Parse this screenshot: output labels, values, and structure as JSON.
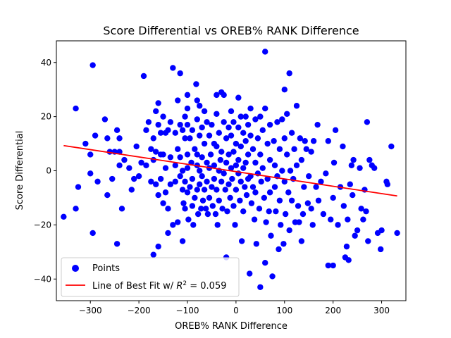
{
  "chart_data": {
    "type": "scatter",
    "title": "Score Differential vs OREB% RANK Difference",
    "xlabel": "OREB% RANK Difference",
    "ylabel": "Score Differential",
    "xlim": [
      -370,
      350
    ],
    "ylim": [
      -48,
      48
    ],
    "xticks": [
      -300,
      -200,
      -100,
      0,
      100,
      200,
      300
    ],
    "yticks": [
      -40,
      -20,
      0,
      20,
      40
    ],
    "xtick_labels": [
      "−300",
      "−200",
      "−100",
      "0",
      "100",
      "200",
      "300"
    ],
    "ytick_labels": [
      "−40",
      "−20",
      "0",
      "20",
      "40"
    ],
    "grid": false,
    "legend_position": "lower-left",
    "series": [
      {
        "name": "Points",
        "color": "#0000ff",
        "marker": "circle",
        "points": [
          [
            -355,
            -17
          ],
          [
            -330,
            23
          ],
          [
            -330,
            -14
          ],
          [
            -325,
            -6
          ],
          [
            -310,
            10
          ],
          [
            -300,
            6
          ],
          [
            -300,
            -1
          ],
          [
            -295,
            39
          ],
          [
            -295,
            -23
          ],
          [
            -290,
            13
          ],
          [
            -285,
            -4
          ],
          [
            -270,
            19
          ],
          [
            -265,
            12
          ],
          [
            -265,
            -9
          ],
          [
            -260,
            7
          ],
          [
            -255,
            -3
          ],
          [
            -250,
            7
          ],
          [
            -245,
            15
          ],
          [
            -245,
            -27
          ],
          [
            -240,
            12
          ],
          [
            -240,
            7
          ],
          [
            -240,
            2
          ],
          [
            -235,
            -14
          ],
          [
            -230,
            4
          ],
          [
            -220,
            1
          ],
          [
            -215,
            -7
          ],
          [
            -210,
            -3
          ],
          [
            -205,
            9
          ],
          [
            -200,
            -2
          ],
          [
            -195,
            3
          ],
          [
            -190,
            35
          ],
          [
            -185,
            15
          ],
          [
            -185,
            2
          ],
          [
            -180,
            18
          ],
          [
            -175,
            8
          ],
          [
            -175,
            -4
          ],
          [
            -170,
            12
          ],
          [
            -170,
            4
          ],
          [
            -170,
            -31
          ],
          [
            -165,
            22
          ],
          [
            -165,
            7
          ],
          [
            -165,
            -5
          ],
          [
            -160,
            25
          ],
          [
            -160,
            17
          ],
          [
            -160,
            -9
          ],
          [
            -160,
            -28
          ],
          [
            -155,
            14
          ],
          [
            -155,
            6
          ],
          [
            -155,
            -3
          ],
          [
            -150,
            20
          ],
          [
            -150,
            6
          ],
          [
            -150,
            -12
          ],
          [
            -145,
            14
          ],
          [
            -145,
            1
          ],
          [
            -145,
            -8
          ],
          [
            -140,
            15
          ],
          [
            -140,
            -14
          ],
          [
            -140,
            -23
          ],
          [
            -135,
            18
          ],
          [
            -135,
            5
          ],
          [
            -135,
            -5
          ],
          [
            -130,
            38
          ],
          [
            -130,
            -20
          ],
          [
            -125,
            14
          ],
          [
            -125,
            2
          ],
          [
            -125,
            -4
          ],
          [
            -120,
            26
          ],
          [
            -120,
            8
          ],
          [
            -120,
            -19
          ],
          [
            -115,
            36
          ],
          [
            -115,
            17
          ],
          [
            -115,
            5
          ],
          [
            -115,
            -2
          ],
          [
            -110,
            15
          ],
          [
            -110,
            0
          ],
          [
            -110,
            -7
          ],
          [
            -110,
            -26
          ],
          [
            -108,
            -12
          ],
          [
            -105,
            20
          ],
          [
            -105,
            12
          ],
          [
            -105,
            -4
          ],
          [
            -105,
            -14
          ],
          [
            -100,
            28
          ],
          [
            -100,
            23
          ],
          [
            -100,
            17
          ],
          [
            -100,
            6
          ],
          [
            -100,
            1
          ],
          [
            -100,
            -8
          ],
          [
            -98,
            -18
          ],
          [
            -95,
            12
          ],
          [
            -95,
            -6
          ],
          [
            -92,
            3
          ],
          [
            -90,
            15
          ],
          [
            -90,
            -3
          ],
          [
            -90,
            -13
          ],
          [
            -88,
            -20
          ],
          [
            -85,
            8
          ],
          [
            -85,
            -10
          ],
          [
            -82,
            32
          ],
          [
            -80,
            26
          ],
          [
            -80,
            19
          ],
          [
            -80,
            6
          ],
          [
            -80,
            2
          ],
          [
            -80,
            -7
          ],
          [
            -78,
            -16
          ],
          [
            -75,
            24
          ],
          [
            -75,
            13
          ],
          [
            -75,
            0
          ],
          [
            -75,
            -5
          ],
          [
            -72,
            -14
          ],
          [
            -70,
            16
          ],
          [
            -70,
            5
          ],
          [
            -70,
            -2
          ],
          [
            -68,
            -11
          ],
          [
            -65,
            22
          ],
          [
            -65,
            10
          ],
          [
            -65,
            -7
          ],
          [
            -62,
            -14
          ],
          [
            -60,
            18
          ],
          [
            -60,
            3
          ],
          [
            -60,
            -4
          ],
          [
            -58,
            -16
          ],
          [
            -55,
            13
          ],
          [
            -55,
            1
          ],
          [
            -55,
            -10
          ],
          [
            -52,
            6
          ],
          [
            -50,
            17
          ],
          [
            -50,
            -6
          ],
          [
            -48,
            -13
          ],
          [
            -45,
            10
          ],
          [
            -45,
            2
          ],
          [
            -45,
            -3
          ],
          [
            -42,
            -16
          ],
          [
            -40,
            28
          ],
          [
            -40,
            21
          ],
          [
            -40,
            9
          ],
          [
            -40,
            -7
          ],
          [
            -38,
            -20
          ],
          [
            -35,
            14
          ],
          [
            -35,
            0
          ],
          [
            -35,
            -11
          ],
          [
            -32,
            4
          ],
          [
            -30,
            29
          ],
          [
            -30,
            7
          ],
          [
            -30,
            -4
          ],
          [
            -28,
            -14
          ],
          [
            -25,
            28
          ],
          [
            -25,
            18
          ],
          [
            -25,
            -1
          ],
          [
            -22,
            -7
          ],
          [
            -20,
            12
          ],
          [
            -20,
            3
          ],
          [
            -20,
            -32
          ],
          [
            -18,
            -15
          ],
          [
            -15,
            16
          ],
          [
            -15,
            6
          ],
          [
            -15,
            -5
          ],
          [
            -12,
            -10
          ],
          [
            -10,
            22
          ],
          [
            -10,
            13
          ],
          [
            -10,
            1
          ],
          [
            -8,
            -3
          ],
          [
            -5,
            18
          ],
          [
            -5,
            7
          ],
          [
            -5,
            -13
          ],
          [
            -2,
            -20
          ],
          [
            0,
            10
          ],
          [
            0,
            2
          ],
          [
            0,
            -7
          ],
          [
            5,
            27
          ],
          [
            5,
            16
          ],
          [
            5,
            4
          ],
          [
            5,
            -1
          ],
          [
            8,
            -11
          ],
          [
            10,
            20
          ],
          [
            10,
            9
          ],
          [
            10,
            -4
          ],
          [
            12,
            -26
          ],
          [
            15,
            14
          ],
          [
            15,
            1
          ],
          [
            15,
            -15
          ],
          [
            18,
            -6
          ],
          [
            20,
            20
          ],
          [
            20,
            11
          ],
          [
            20,
            3
          ],
          [
            22,
            -9
          ],
          [
            25,
            17
          ],
          [
            25,
            6
          ],
          [
            25,
            -3
          ],
          [
            28,
            -38
          ],
          [
            30,
            23
          ],
          [
            30,
            13
          ],
          [
            30,
            -2
          ],
          [
            32,
            -12
          ],
          [
            35,
            8
          ],
          [
            35,
            -6
          ],
          [
            38,
            -18
          ],
          [
            40,
            19
          ],
          [
            40,
            3
          ],
          [
            40,
            -8
          ],
          [
            42,
            -27
          ],
          [
            45,
            12
          ],
          [
            45,
            -1
          ],
          [
            48,
            -14
          ],
          [
            50,
            20
          ],
          [
            50,
            6
          ],
          [
            50,
            -43
          ],
          [
            52,
            -4
          ],
          [
            55,
            15
          ],
          [
            55,
            1
          ],
          [
            58,
            -10
          ],
          [
            60,
            44
          ],
          [
            60,
            23
          ],
          [
            60,
            -34
          ],
          [
            62,
            -19
          ],
          [
            65,
            10
          ],
          [
            65,
            -3
          ],
          [
            68,
            -15
          ],
          [
            70,
            17
          ],
          [
            70,
            4
          ],
          [
            70,
            -8
          ],
          [
            72,
            -24
          ],
          [
            75,
            -39
          ],
          [
            78,
            11
          ],
          [
            80,
            2
          ],
          [
            80,
            -6
          ],
          [
            82,
            -15
          ],
          [
            85,
            18
          ],
          [
            85,
            -2
          ],
          [
            88,
            -29
          ],
          [
            90,
            8
          ],
          [
            90,
            -11
          ],
          [
            92,
            -20
          ],
          [
            95,
            19
          ],
          [
            95,
            0
          ],
          [
            98,
            -27
          ],
          [
            100,
            30
          ],
          [
            100,
            12
          ],
          [
            100,
            -4
          ],
          [
            102,
            -16
          ],
          [
            105,
            21
          ],
          [
            105,
            6
          ],
          [
            108,
            -8
          ],
          [
            110,
            36
          ],
          [
            110,
            -22
          ],
          [
            112,
            0
          ],
          [
            115,
            14
          ],
          [
            115,
            -11
          ],
          [
            118,
            -3
          ],
          [
            120,
            8
          ],
          [
            122,
            -19
          ],
          [
            125,
            24
          ],
          [
            125,
            2
          ],
          [
            128,
            -13
          ],
          [
            130,
            -19
          ],
          [
            132,
            12
          ],
          [
            135,
            -26
          ],
          [
            135,
            4
          ],
          [
            138,
            -16
          ],
          [
            140,
            -6
          ],
          [
            142,
            11
          ],
          [
            145,
            8
          ],
          [
            148,
            -12
          ],
          [
            150,
            -2
          ],
          [
            155,
            -14
          ],
          [
            155,
            7
          ],
          [
            158,
            -20
          ],
          [
            160,
            11
          ],
          [
            165,
            -6
          ],
          [
            168,
            17
          ],
          [
            170,
            -11
          ],
          [
            175,
            -4
          ],
          [
            180,
            -16
          ],
          [
            185,
            -1
          ],
          [
            190,
            -35
          ],
          [
            190,
            11
          ],
          [
            195,
            -18
          ],
          [
            200,
            -10
          ],
          [
            200,
            -35
          ],
          [
            202,
            3
          ],
          [
            205,
            15
          ],
          [
            210,
            -20
          ],
          [
            215,
            -6
          ],
          [
            220,
            9
          ],
          [
            222,
            -13
          ],
          [
            225,
            -32
          ],
          [
            228,
            -28
          ],
          [
            230,
            -18
          ],
          [
            232,
            -33
          ],
          [
            235,
            -5
          ],
          [
            238,
            2
          ],
          [
            240,
            -9
          ],
          [
            242,
            4
          ],
          [
            245,
            -24
          ],
          [
            250,
            -22
          ],
          [
            255,
            1
          ],
          [
            258,
            -14
          ],
          [
            262,
            -18
          ],
          [
            265,
            -7
          ],
          [
            268,
            -15
          ],
          [
            270,
            18
          ],
          [
            272,
            -26
          ],
          [
            275,
            4
          ],
          [
            280,
            2
          ],
          [
            285,
            1
          ],
          [
            292,
            -23
          ],
          [
            298,
            -29
          ],
          [
            300,
            -22
          ],
          [
            310,
            -4
          ],
          [
            312,
            -5
          ],
          [
            320,
            9
          ],
          [
            332,
            -23
          ]
        ]
      },
      {
        "name": "Line of Best Fit w/ $R^2 = 0.059$",
        "color": "#ff0000",
        "type": "line",
        "x": [
          -355,
          332
        ],
        "y": [
          9.3,
          -9.3
        ]
      }
    ],
    "legend": {
      "points_label": "Points",
      "fit_label_prefix": "Line of Best Fit w/ ",
      "fit_label_r": "R",
      "fit_label_sup": "2",
      "fit_label_suffix": " = 0.059"
    }
  }
}
